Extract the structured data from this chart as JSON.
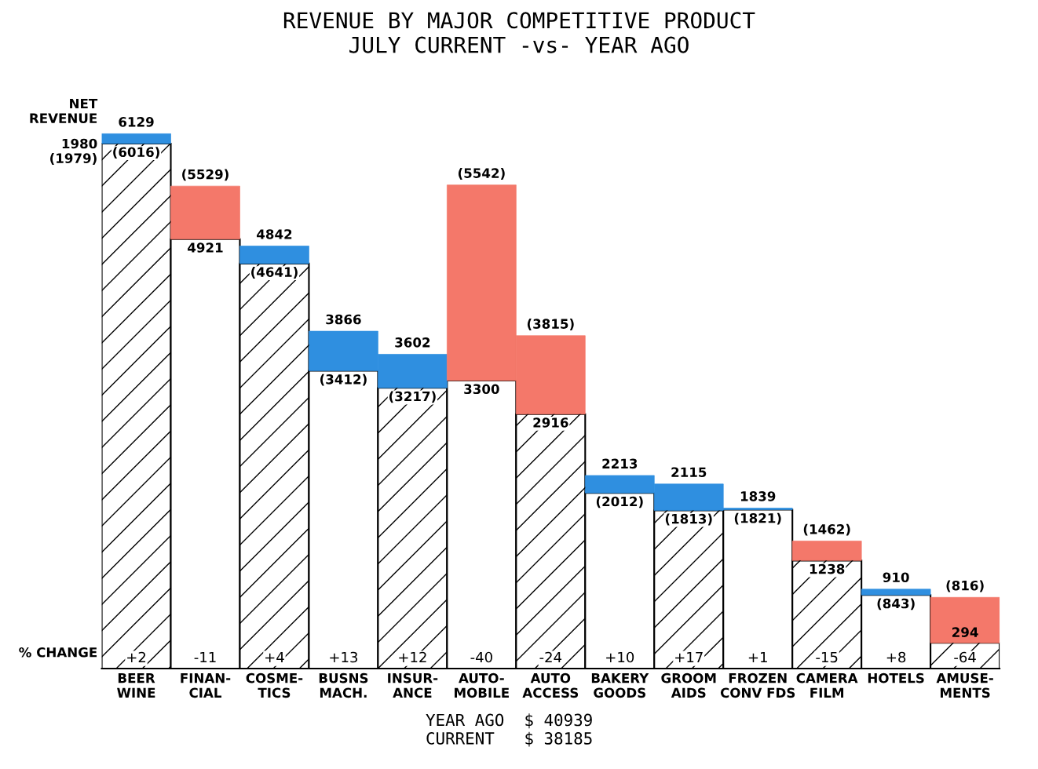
{
  "chart_data": {
    "type": "bar",
    "title": "REVENUE BY MAJOR COMPETITIVE PRODUCT\nJULY CURRENT -vs- YEAR AGO",
    "categories": [
      "BEER\nWINE",
      "FINAN-\nCIAL",
      "COSME-\nTICS",
      "BUSNS\nMACH.",
      "INSUR-\nANCE",
      "AUTO-\nMOBILE",
      "AUTO\nACCESS",
      "BAKERY\nGOODS",
      "GROOM\nAIDS",
      "FROZEN\nCONV FDS",
      "CAMERA\nFILM",
      "HOTELS",
      "AMUSE-\nMENTS"
    ],
    "stacked": true,
    "series": [
      {
        "colors": [
          "#ffffff",
          "#ffffff",
          "#ffffff",
          "#ffffff",
          "#ffffff",
          "#ffffff",
          "#ffffff",
          "#ffffff",
          "#ffffff",
          "#ffffff",
          "#ffffff",
          "#ffffff",
          "#ffffff"
        ],
        "values": [
          6016,
          4921,
          4641,
          3412,
          3217,
          3300,
          2916,
          2012,
          1813,
          1821,
          1238,
          843,
          294
        ],
        "value_labels": [
          "(6016)",
          "4921",
          "(4641)",
          "(3412)",
          "(3217)",
          "3300",
          "2916",
          "(2012)",
          "(1813)",
          "(1821)",
          "1238",
          "(843)",
          "294"
        ]
      },
      {
        "colors": [
          "#2f8fe0",
          "#f4786a",
          "#2f8fe0",
          "#2f8fe0",
          "#2f8fe0",
          "#f4786a",
          "#f4786a",
          "#2f8fe0",
          "#2f8fe0",
          "#2f8fe0",
          "#f4786a",
          "#2f8fe0",
          "#f4786a"
        ],
        "values": [
          113,
          608,
          201,
          454,
          385,
          2242,
          899,
          201,
          302,
          18,
          224,
          67,
          522
        ]
      }
    ],
    "totals": [
      "6129",
      "(5529)",
      "4842",
      "3866",
      "3602",
      "(5542)",
      "(3815)",
      "2213",
      "2115",
      "1839",
      "(1462)",
      "910",
      "(816)"
    ],
    "annotations": [
      "NET\nREVENUE",
      "1980\n(1979)",
      "% CHANGE",
      "YEAR AGO  $ 40939\nCURRENT   $ 38185",
      {
        "text": "+2",
        "x": "BEER\nWINE",
        "y": 0
      },
      {
        "text": "-11",
        "x": "FINAN-\nCIAL",
        "y": 0
      },
      {
        "text": "+4",
        "x": "COSME-\nTICS",
        "y": 0
      },
      {
        "text": "+13",
        "x": "BUSNS\nMACH.",
        "y": 0
      },
      {
        "text": "+12",
        "x": "INSUR-\nANCE",
        "y": 0
      },
      {
        "text": "-40",
        "x": "AUTO-\nMOBILE",
        "y": 0
      },
      {
        "text": "-24",
        "x": "AUTO\nACCESS",
        "y": 0
      },
      {
        "text": "+10",
        "x": "BAKERY\nGOODS",
        "y": 0
      },
      {
        "text": "+17",
        "x": "GROOM\nAIDS",
        "y": 0
      },
      {
        "text": "+1",
        "x": "FROZEN\nCONV FDS",
        "y": 0
      },
      {
        "text": "-15",
        "x": "CAMERA\nFILM",
        "y": 0
      },
      {
        "text": "+8",
        "x": "HOTELS",
        "y": 0
      },
      {
        "text": "-64",
        "x": "AMUSE-\nMENTS",
        "y": 0
      }
    ],
    "legend": false,
    "grid": false
  }
}
